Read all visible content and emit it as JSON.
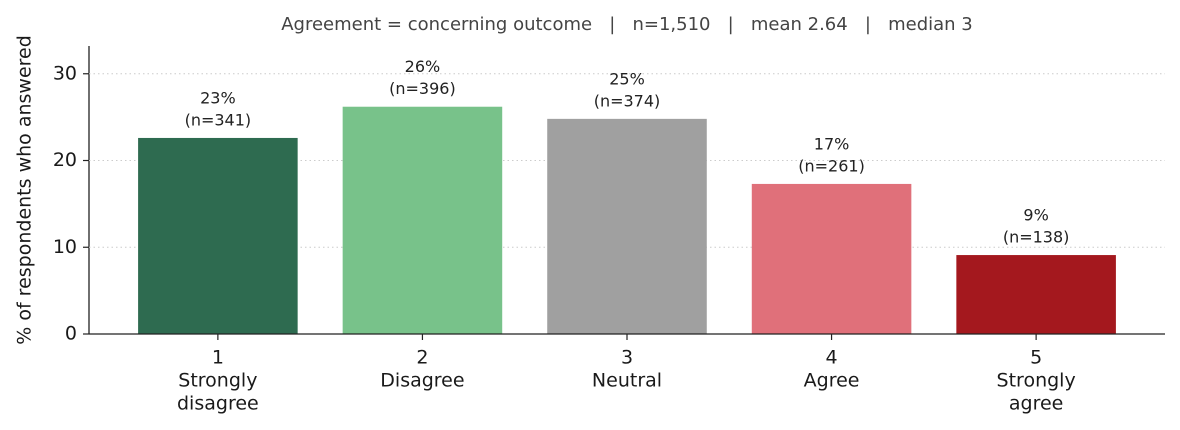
{
  "chart_data": {
    "type": "bar",
    "title": "Agreement = concerning outcome   |   n=1,510   |   mean 2.64   |   median 3",
    "y_label": "% of respondents who answered",
    "categories": [
      "1",
      "2",
      "3",
      "4",
      "5"
    ],
    "category_names": [
      [
        "Strongly",
        "disagree"
      ],
      [
        "Disagree"
      ],
      [
        "Neutral"
      ],
      [
        "Agree"
      ],
      [
        "Strongly",
        "agree"
      ]
    ],
    "values": [
      22.6,
      26.2,
      24.8,
      17.3,
      9.1
    ],
    "value_labels": [
      "23%",
      "26%",
      "25%",
      "17%",
      "9%"
    ],
    "count_labels": [
      "(n=341)",
      "(n=396)",
      "(n=374)",
      "(n=261)",
      "(n=138)"
    ],
    "colors": [
      "#2e6b50",
      "#78c28a",
      "#a0a0a0",
      "#e0707a",
      "#a4181e"
    ],
    "ylim": [
      0,
      33.2
    ],
    "yticks": [
      0,
      10,
      20,
      30
    ],
    "grid": true
  }
}
